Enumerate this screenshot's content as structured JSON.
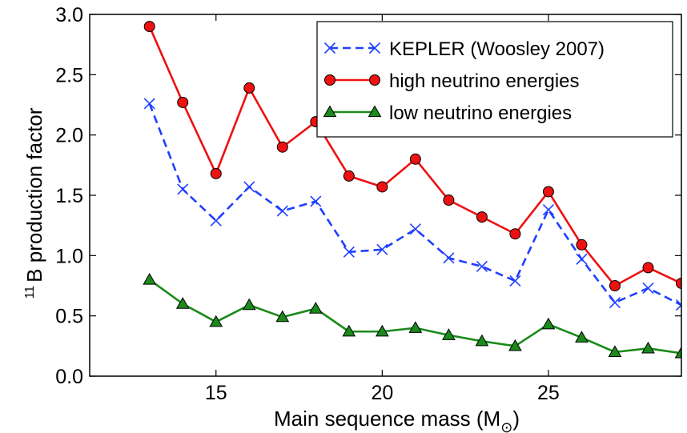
{
  "chart_data": {
    "type": "line",
    "title": "",
    "xlabel": {
      "main": "Main sequence mass (M",
      "sub": "⊙",
      "close": ")"
    },
    "ylabel": {
      "sup": "11",
      "main": "B production factor"
    },
    "xlim": [
      11.2,
      29
    ],
    "ylim": [
      0,
      3.0
    ],
    "xticks": [
      15,
      20,
      25
    ],
    "yticks": [
      "0.0",
      "0.5",
      "1.0",
      "1.5",
      "2.0",
      "2.5",
      "3.0"
    ],
    "x": [
      13,
      14,
      15,
      16,
      17,
      18,
      19,
      20,
      21,
      22,
      23,
      24,
      25,
      26,
      27,
      28,
      29
    ],
    "legend_position": "top-right",
    "grid": false,
    "series": [
      {
        "name": "KEPLER (Woosley 2007)",
        "color": "#1f3fff",
        "line_style": "dashed",
        "marker": "x",
        "values": [
          2.26,
          1.55,
          1.29,
          1.57,
          1.37,
          1.45,
          1.03,
          1.05,
          1.22,
          0.98,
          0.91,
          0.79,
          1.38,
          0.97,
          0.61,
          0.73,
          0.59
        ]
      },
      {
        "name": "high neutrino energies",
        "color": "#ee1111",
        "line_style": "solid",
        "marker": "circle",
        "values": [
          2.9,
          2.27,
          1.68,
          2.39,
          1.9,
          2.11,
          1.66,
          1.57,
          1.8,
          1.46,
          1.32,
          1.18,
          1.53,
          1.09,
          0.75,
          0.9,
          0.77
        ]
      },
      {
        "name": "low neutrino energies",
        "color": "#1a8a1a",
        "line_style": "solid",
        "marker": "triangle",
        "values": [
          0.8,
          0.6,
          0.45,
          0.59,
          0.49,
          0.56,
          0.37,
          0.37,
          0.4,
          0.34,
          0.29,
          0.25,
          0.43,
          0.32,
          0.2,
          0.23,
          0.19
        ]
      }
    ]
  }
}
